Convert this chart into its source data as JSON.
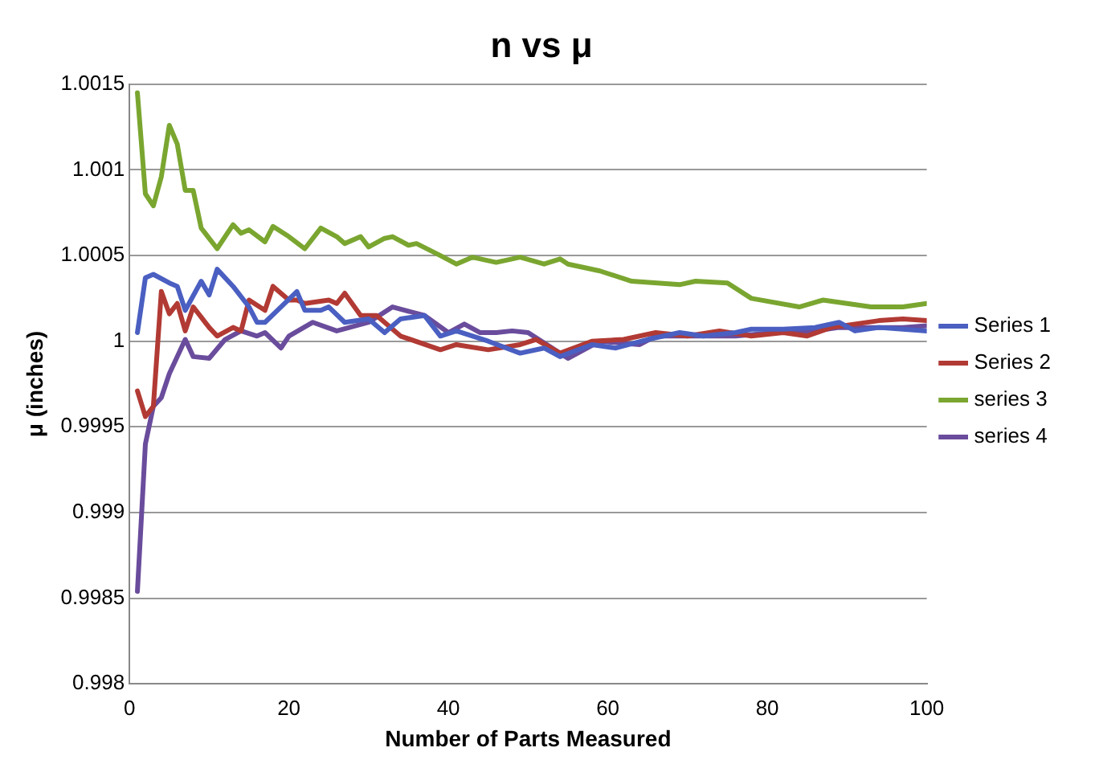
{
  "chart_data": {
    "type": "line",
    "title": "n vs μ",
    "xlabel": "Number of Parts Measured",
    "ylabel": "μ (inches)",
    "xlim": [
      0,
      100
    ],
    "xticks": [
      0,
      20,
      40,
      60,
      80,
      100
    ],
    "ylim": [
      0.998,
      1.0015
    ],
    "yticks": [
      0.998,
      0.9985,
      0.999,
      0.9995,
      1,
      1.0005,
      1.001,
      1.0015
    ],
    "grid": "y",
    "legend": "right",
    "marker": "none",
    "line_style": "solid",
    "series": [
      {
        "name": "Series 1",
        "color": "#4a5fc1",
        "x": [
          1,
          2,
          3,
          5,
          6,
          7,
          9,
          10,
          11,
          13,
          15,
          16,
          17,
          19,
          21,
          22,
          24,
          25,
          27,
          30,
          32,
          34,
          37,
          39,
          41,
          45,
          49,
          52,
          54,
          58,
          61,
          65,
          69,
          72,
          76,
          78,
          82,
          86,
          89,
          91,
          94,
          97,
          100
        ],
        "values": [
          1.00005,
          1.00037,
          1.00039,
          1.00034,
          1.00032,
          1.00018,
          1.00035,
          1.00027,
          1.00042,
          1.00032,
          1.0002,
          1.00011,
          1.00011,
          1.0002,
          1.00029,
          1.00018,
          1.00018,
          1.0002,
          1.00011,
          1.00013,
          1.00005,
          1.00013,
          1.00015,
          1.00003,
          1.00006,
          1.0,
          0.99993,
          0.99996,
          0.99991,
          0.99998,
          0.99996,
          1.00001,
          1.00005,
          1.00003,
          1.00005,
          1.00007,
          1.00007,
          1.00008,
          1.00011,
          1.00006,
          1.00008,
          1.00007,
          1.00006
        ]
      },
      {
        "name": "Series 2",
        "color": "#b23a34",
        "x": [
          1,
          2,
          3,
          4,
          5,
          6,
          7,
          8,
          10,
          11,
          13,
          14,
          15,
          17,
          18,
          20,
          21,
          22,
          25,
          26,
          27,
          29,
          31,
          34,
          39,
          41,
          45,
          49,
          51,
          54,
          58,
          62,
          66,
          70,
          74,
          78,
          82,
          85,
          88,
          91,
          94,
          97,
          100
        ],
        "values": [
          0.99971,
          0.99956,
          0.99962,
          1.00029,
          1.00016,
          1.00022,
          1.00006,
          1.0002,
          1.00008,
          1.00003,
          1.00008,
          1.00006,
          1.00024,
          1.00018,
          1.00032,
          1.00024,
          1.00024,
          1.00022,
          1.00024,
          1.00022,
          1.00028,
          1.00015,
          1.00015,
          1.00003,
          0.99995,
          0.99998,
          0.99995,
          0.99998,
          1.00001,
          0.99993,
          1.0,
          1.00001,
          1.00005,
          1.00003,
          1.00006,
          1.00003,
          1.00005,
          1.00003,
          1.00008,
          1.0001,
          1.00012,
          1.00013,
          1.00012
        ]
      },
      {
        "name": "series 3",
        "color": "#7aa630",
        "x": [
          1,
          2,
          3,
          4,
          5,
          6,
          7,
          8,
          9,
          11,
          13,
          14,
          15,
          17,
          18,
          20,
          22,
          24,
          26,
          27,
          29,
          30,
          32,
          33,
          35,
          36,
          39,
          41,
          43,
          46,
          49,
          52,
          54,
          55,
          59,
          63,
          69,
          71,
          75,
          78,
          84,
          87,
          90,
          93,
          97,
          100
        ],
        "values": [
          1.00145,
          1.00086,
          1.00079,
          1.00096,
          1.00126,
          1.00115,
          1.00088,
          1.00088,
          1.00066,
          1.00054,
          1.00068,
          1.00063,
          1.00065,
          1.00058,
          1.00067,
          1.00061,
          1.00054,
          1.00066,
          1.00061,
          1.00057,
          1.00061,
          1.00055,
          1.0006,
          1.00061,
          1.00056,
          1.00057,
          1.0005,
          1.00045,
          1.00049,
          1.00046,
          1.00049,
          1.00045,
          1.00048,
          1.00045,
          1.00041,
          1.00035,
          1.00033,
          1.00035,
          1.00034,
          1.00025,
          1.0002,
          1.00024,
          1.00022,
          1.0002,
          1.0002,
          1.00022
        ]
      },
      {
        "name": "series 4",
        "color": "#6a4c9c",
        "x": [
          1,
          2,
          3,
          4,
          5,
          7,
          8,
          10,
          12,
          14,
          16,
          17,
          19,
          20,
          23,
          26,
          30,
          33,
          37,
          40,
          42,
          44,
          46,
          48,
          50,
          54,
          55,
          59,
          64,
          66,
          71,
          76,
          81,
          86,
          89,
          93,
          97,
          100
        ],
        "values": [
          0.99854,
          0.9994,
          0.99962,
          0.99967,
          0.99981,
          1.00001,
          0.99991,
          0.9999,
          1.00001,
          1.00006,
          1.00003,
          1.00005,
          0.99996,
          1.00003,
          1.00011,
          1.00006,
          1.00011,
          1.0002,
          1.00015,
          1.00005,
          1.0001,
          1.00005,
          1.00005,
          1.00006,
          1.00005,
          0.99993,
          0.9999,
          1.0,
          0.99998,
          1.00003,
          1.00003,
          1.00003,
          1.00005,
          1.00006,
          1.00008,
          1.00008,
          1.00008,
          1.00009
        ]
      }
    ]
  }
}
